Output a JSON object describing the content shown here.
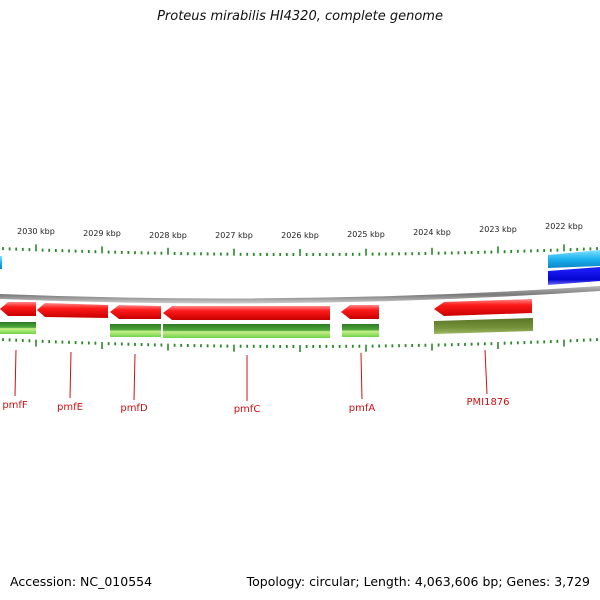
{
  "title": "Proteus mirabilis HI4320, complete genome",
  "footer": {
    "accession": "Accession: NC_010554",
    "summary": "Topology: circular; Length: 4,063,606 bp; Genes: 3,729"
  },
  "colors": {
    "backbone": "#8a8a8a",
    "tick": "#2a8a2a",
    "gene_red": "#ee1111",
    "gene_green": "#3f9a2f",
    "gene_olive": "#6e8a2e",
    "gene_cyan": "#22b8ee",
    "gene_blue": "#1010e0",
    "label": "#cc1111"
  },
  "scale_labels": [
    "2030 kbp",
    "2029 kbp",
    "2028 kbp",
    "2027 kbp",
    "2026 kbp",
    "2025 kbp",
    "2024 kbp",
    "2023 kbp",
    "2022 kbp"
  ],
  "gene_labels": [
    "pmfF",
    "pmfE",
    "pmfD",
    "pmfC",
    "pmfA",
    "PMI1876"
  ]
}
